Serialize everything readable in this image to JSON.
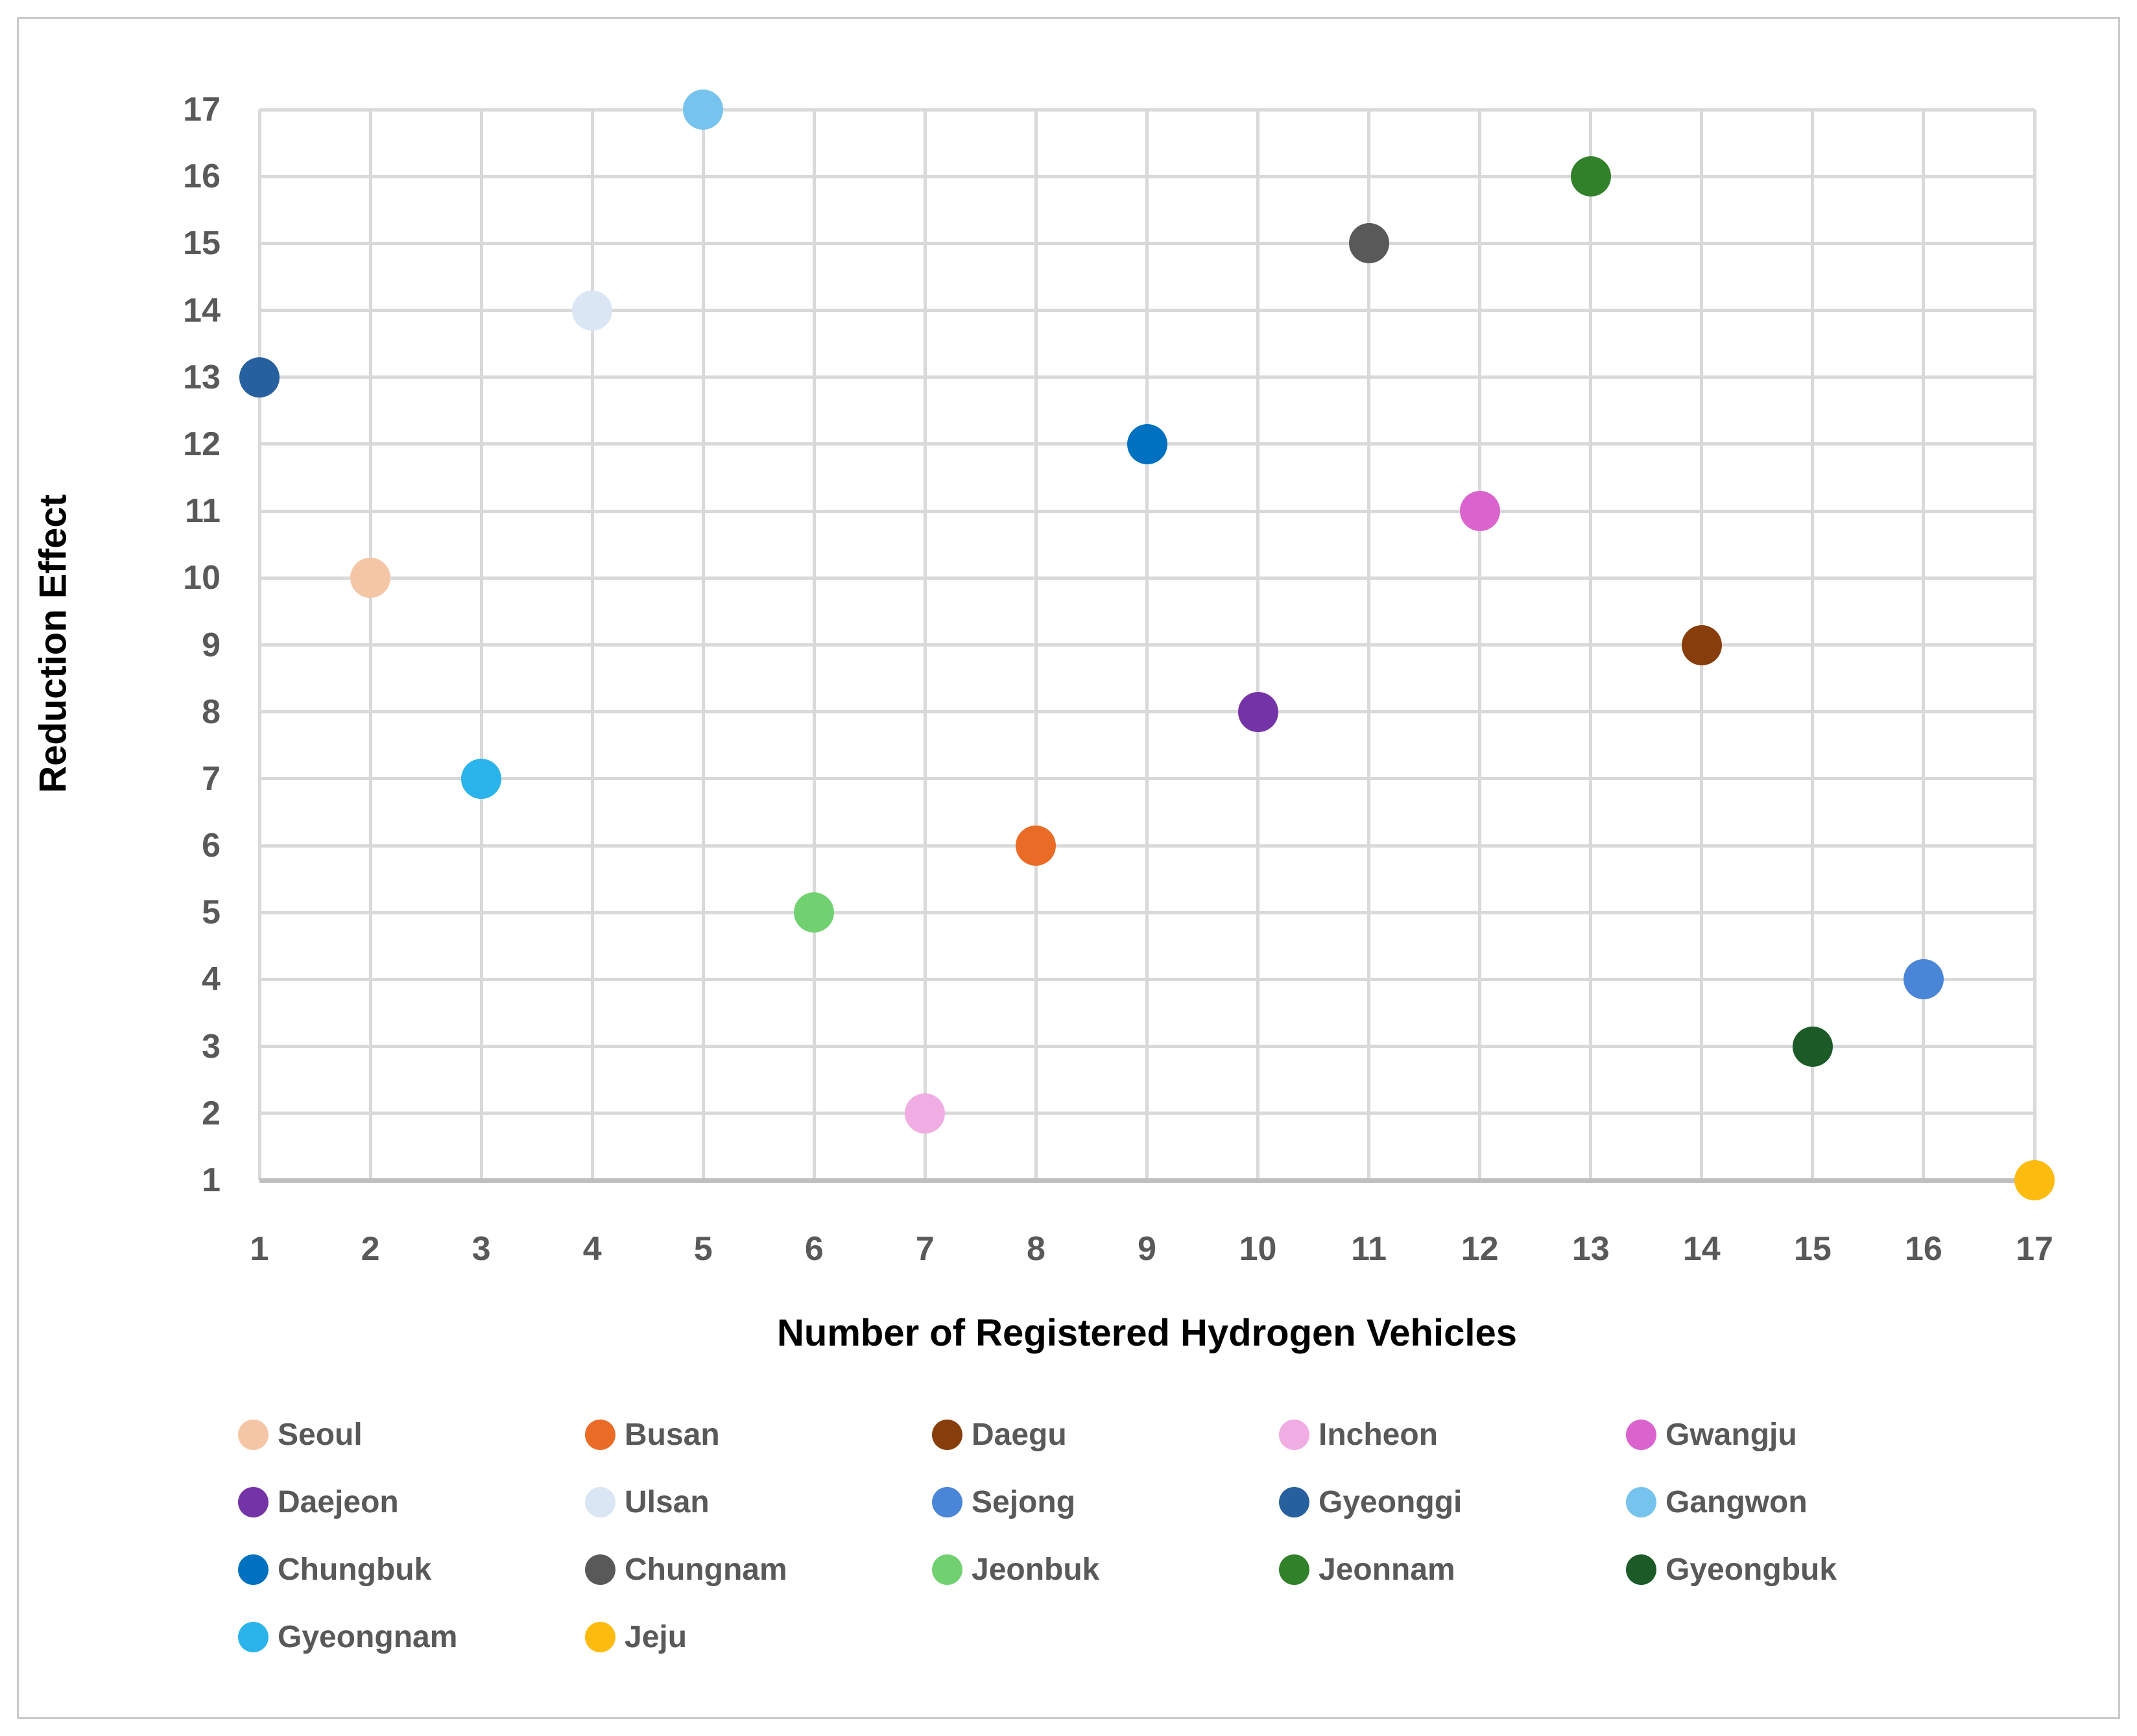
{
  "chart_data": {
    "type": "scatter",
    "title": "",
    "xlabel": "Number of Registered Hydrogen Vehicles",
    "ylabel": "Reduction Effect",
    "xlim": [
      1,
      17
    ],
    "ylim": [
      1,
      17
    ],
    "xticks": [
      1,
      2,
      3,
      4,
      5,
      6,
      7,
      8,
      9,
      10,
      11,
      12,
      13,
      14,
      15,
      16,
      17
    ],
    "yticks": [
      1,
      2,
      3,
      4,
      5,
      6,
      7,
      8,
      9,
      10,
      11,
      12,
      13,
      14,
      15,
      16,
      17
    ],
    "grid": true,
    "legend_position": "bottom",
    "series": [
      {
        "name": "Seoul",
        "x": 2,
        "y": 10,
        "color": "#F5C6A5"
      },
      {
        "name": "Busan",
        "x": 8,
        "y": 6,
        "color": "#E96B25"
      },
      {
        "name": "Daegu",
        "x": 14,
        "y": 9,
        "color": "#873E0C"
      },
      {
        "name": "Incheon",
        "x": 7,
        "y": 2,
        "color": "#F0ADE4"
      },
      {
        "name": "Gwangju",
        "x": 12,
        "y": 11,
        "color": "#DB63CE"
      },
      {
        "name": "Daejeon",
        "x": 10,
        "y": 8,
        "color": "#7533A8"
      },
      {
        "name": "Ulsan",
        "x": 4,
        "y": 14,
        "color": "#DBE6F4"
      },
      {
        "name": "Sejong",
        "x": 16,
        "y": 4,
        "color": "#4A86D8"
      },
      {
        "name": "Gyeonggi",
        "x": 1,
        "y": 13,
        "color": "#27609F"
      },
      {
        "name": "Gangwon",
        "x": 5,
        "y": 17,
        "color": "#76C3ED"
      },
      {
        "name": "Chungbuk",
        "x": 9,
        "y": 12,
        "color": "#0070C0"
      },
      {
        "name": "Chungnam",
        "x": 11,
        "y": 15,
        "color": "#595959"
      },
      {
        "name": "Jeonbuk",
        "x": 6,
        "y": 5,
        "color": "#71D171"
      },
      {
        "name": "Jeonnam",
        "x": 13,
        "y": 16,
        "color": "#31802A"
      },
      {
        "name": "Gyeongbuk",
        "x": 15,
        "y": 3,
        "color": "#1C5A28"
      },
      {
        "name": "Gyeongnam",
        "x": 3,
        "y": 7,
        "color": "#2BB3EB"
      },
      {
        "name": "Jeju",
        "x": 17,
        "y": 1,
        "color": "#FCBB0E"
      }
    ]
  }
}
